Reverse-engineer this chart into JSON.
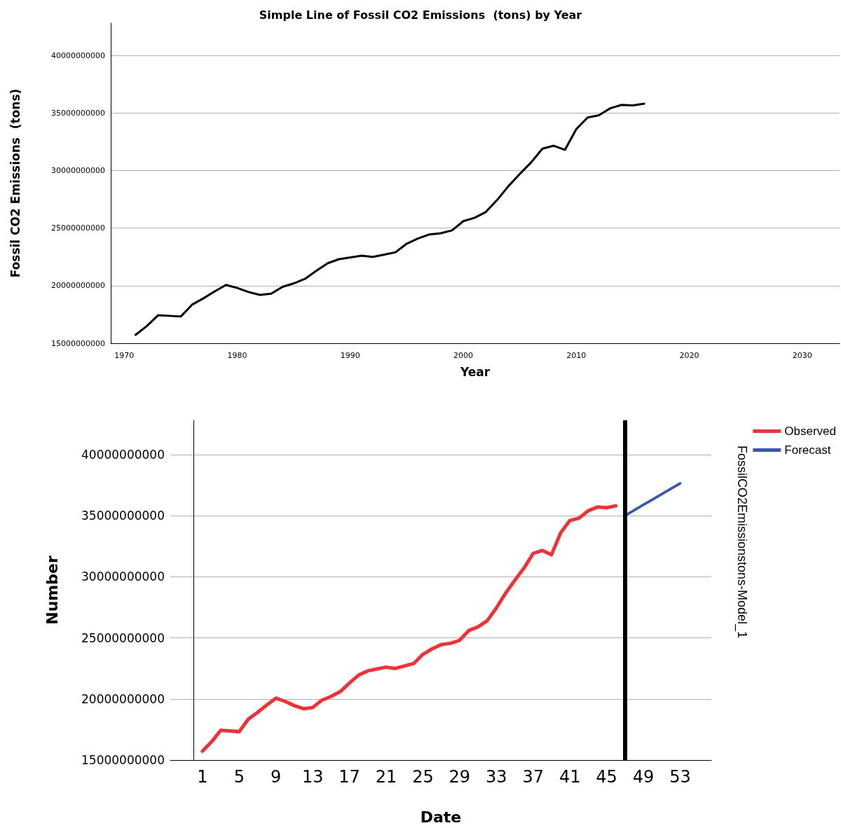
{
  "chart_data": [
    {
      "type": "line",
      "title": "Simple Line of Fossil CO2 Emissions  (tons) by Year",
      "xlabel": "Year",
      "ylabel": "Fossil CO2 Emissions  (tons)",
      "x": [
        1971,
        1972,
        1973,
        1974,
        1975,
        1976,
        1977,
        1978,
        1979,
        1980,
        1981,
        1982,
        1983,
        1984,
        1985,
        1986,
        1987,
        1988,
        1989,
        1990,
        1991,
        1992,
        1993,
        1994,
        1995,
        1996,
        1997,
        1998,
        1999,
        2000,
        2001,
        2002,
        2003,
        2004,
        2005,
        2006,
        2007,
        2008,
        2009,
        2010,
        2011,
        2012,
        2013,
        2014,
        2015,
        2016
      ],
      "series": [
        {
          "color": "#000000",
          "values": [
            15730000000,
            16500000000,
            17440000000,
            17380000000,
            17320000000,
            18350000000,
            18900000000,
            19500000000,
            20060000000,
            19800000000,
            19450000000,
            19200000000,
            19300000000,
            19900000000,
            20200000000,
            20600000000,
            21300000000,
            21950000000,
            22300000000,
            22450000000,
            22600000000,
            22500000000,
            22700000000,
            22900000000,
            23650000000,
            24100000000,
            24450000000,
            24550000000,
            24800000000,
            25600000000,
            25900000000,
            26400000000,
            27450000000,
            28650000000,
            29700000000,
            30700000000,
            31900000000,
            32150000000,
            31800000000,
            33600000000,
            34600000000,
            34800000000,
            35400000000,
            35700000000,
            35650000000,
            35800000000
          ]
        }
      ],
      "xlim": [
        1968.8,
        2033.3
      ],
      "xticks": [
        1970,
        1980,
        1990,
        2000,
        2010,
        2020,
        2030
      ],
      "ylim": [
        15000000000,
        42800000000
      ],
      "yticks": [
        15000000000,
        20000000000,
        25000000000,
        30000000000,
        35000000000,
        40000000000
      ],
      "grid": "y",
      "legend": false,
      "marker": "none",
      "line_style": "solid"
    },
    {
      "type": "line",
      "xlabel": "Date",
      "ylabel": "Number",
      "annotations": [
        "FossilCO2Emissionstons-Model_1"
      ],
      "series": [
        {
          "name": "Observed",
          "color": "#ee3338",
          "x": [
            1,
            2,
            3,
            4,
            5,
            6,
            7,
            8,
            9,
            10,
            11,
            12,
            13,
            14,
            15,
            16,
            17,
            18,
            19,
            20,
            21,
            22,
            23,
            24,
            25,
            26,
            27,
            28,
            29,
            30,
            31,
            32,
            33,
            34,
            35,
            36,
            37,
            38,
            39,
            40,
            41,
            42,
            43,
            44,
            45,
            46
          ],
          "values": [
            15730000000,
            16500000000,
            17440000000,
            17380000000,
            17320000000,
            18350000000,
            18900000000,
            19500000000,
            20060000000,
            19800000000,
            19450000000,
            19200000000,
            19300000000,
            19900000000,
            20200000000,
            20600000000,
            21300000000,
            21950000000,
            22300000000,
            22450000000,
            22600000000,
            22500000000,
            22700000000,
            22900000000,
            23650000000,
            24100000000,
            24450000000,
            24550000000,
            24800000000,
            25600000000,
            25900000000,
            26400000000,
            27450000000,
            28650000000,
            29700000000,
            30700000000,
            31900000000,
            32150000000,
            31800000000,
            33600000000,
            34600000000,
            34800000000,
            35400000000,
            35700000000,
            35650000000,
            35800000000
          ]
        },
        {
          "name": "Forecast",
          "color": "#3a57b0",
          "x": [
            47,
            48,
            49,
            50,
            51,
            52,
            53
          ],
          "values": [
            35000000000,
            35440000000,
            35880000000,
            36320000000,
            36760000000,
            37200000000,
            37640000000
          ]
        }
      ],
      "xlim": [
        -2.5,
        56.4
      ],
      "xticks": [
        1,
        5,
        9,
        13,
        17,
        21,
        25,
        29,
        33,
        37,
        41,
        45,
        49,
        53
      ],
      "ylim": [
        15000000000,
        42800000000
      ],
      "yticks": [
        15000000000,
        20000000000,
        25000000000,
        30000000000,
        35000000000,
        40000000000
      ],
      "ref_lines": [
        {
          "axis": "x",
          "value": 47,
          "color": "#000000"
        }
      ],
      "grid": "y",
      "legend": "top right",
      "marker": "none",
      "line_style": "solid"
    }
  ]
}
